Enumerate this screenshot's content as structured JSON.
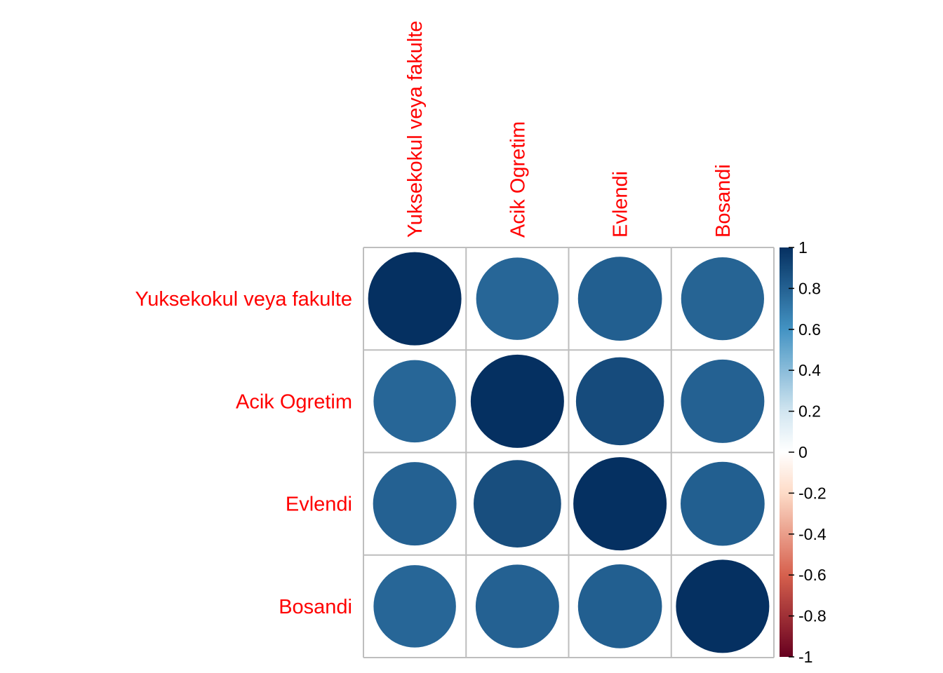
{
  "chart_data": {
    "type": "heatmap",
    "variables": [
      "Yuksekokul veya fakulte",
      "Acik Ogretim",
      "Evlendi",
      "Bosandi"
    ],
    "matrix": [
      [
        1.0,
        0.78,
        0.81,
        0.79
      ],
      [
        0.78,
        1.0,
        0.89,
        0.8
      ],
      [
        0.8,
        0.88,
        1.0,
        0.81
      ],
      [
        0.78,
        0.8,
        0.81,
        1.0
      ]
    ],
    "colorbar": {
      "range": [
        -1,
        1
      ],
      "ticks": [
        "1",
        "0.8",
        "0.6",
        "0.4",
        "0.2",
        "0",
        "-0.2",
        "-0.4",
        "-0.6",
        "-0.8",
        "-1"
      ],
      "colors": {
        "neg_1": "#67001f",
        "neg_06": "#d6604d",
        "neg_02": "#fddbc7",
        "zero": "#ffffff",
        "pos_02": "#d1e5f0",
        "pos_06": "#4393c3",
        "pos_1": "#053061"
      }
    },
    "label_color": "#ff0000",
    "grid_color": "#bebebe"
  }
}
